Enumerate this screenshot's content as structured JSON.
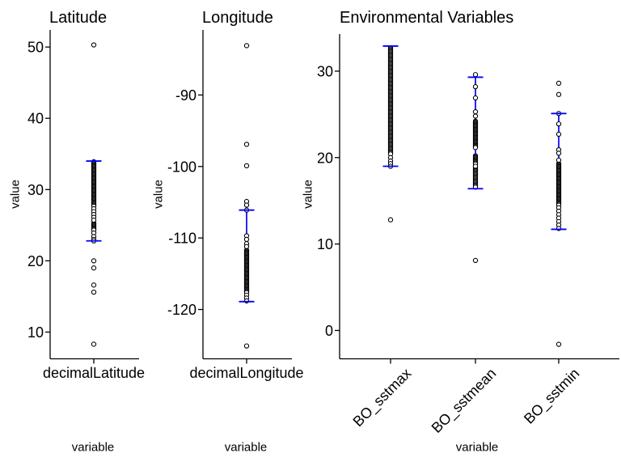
{
  "figure": {
    "background": "#ffffff",
    "point_color": "#000000",
    "errorbar_color": "#0000ff",
    "axis_color": "#000000",
    "text_color": "#000000"
  },
  "chart_data": [
    {
      "type": "scatter",
      "title": "Latitude",
      "ylabel": "value",
      "xlabel": "variable",
      "categories": [
        "decimalLatitude"
      ],
      "y_ticks": [
        10,
        20,
        30,
        40,
        50
      ],
      "ylim": [
        6.25,
        52.4
      ],
      "x_tick_angle": 0,
      "grid": false,
      "legend": false,
      "series": [
        {
          "category": "decimalLatitude",
          "whisker": {
            "min": 22.8,
            "max": 34.0
          },
          "dense_ranges": [
            [
              27.6,
              33.9
            ],
            [
              24.2,
              25.3
            ]
          ],
          "points": [
            50.3,
            27.3,
            26.9,
            26.5,
            26.1,
            25.7,
            23.9,
            23.4,
            23.0,
            22.8,
            20.0,
            19.0,
            16.6,
            15.6,
            8.3
          ]
        }
      ]
    },
    {
      "type": "scatter",
      "title": "Longitude",
      "ylabel": "value",
      "xlabel": "variable",
      "categories": [
        "decimalLongitude"
      ],
      "y_ticks": [
        -120,
        -110,
        -100,
        -90
      ],
      "ylim": [
        -126.9,
        -80.9
      ],
      "x_tick_angle": 0,
      "grid": false,
      "legend": false,
      "series": [
        {
          "category": "decimalLongitude",
          "whisker": {
            "min": -118.9,
            "max": -106.1
          },
          "dense_ranges": [
            [
              -117.7,
              -111.7
            ]
          ],
          "points": [
            -83.1,
            -96.9,
            -99.9,
            -104.9,
            -105.4,
            -106.1,
            -109.7,
            -110.2,
            -110.8,
            -111.2,
            -118.0,
            -118.4,
            -118.8,
            -125.1
          ]
        }
      ]
    },
    {
      "type": "scatter",
      "title": "Environmental Variables",
      "ylabel": "value",
      "xlabel": "variable",
      "categories": [
        "BO_sstmax",
        "BO_sstmean",
        "BO_sstmin"
      ],
      "y_ticks": [
        0,
        10,
        20,
        30
      ],
      "ylim": [
        -3.28,
        34.3
      ],
      "x_tick_angle": 45,
      "grid": false,
      "legend": false,
      "series": [
        {
          "category": "BO_sstmax",
          "whisker": {
            "min": 19.0,
            "max": 32.9
          },
          "dense_ranges": [
            [
              20.4,
              32.7
            ]
          ],
          "points": [
            20.0,
            19.6,
            19.3,
            19.0,
            12.8
          ]
        },
        {
          "category": "BO_sstmean",
          "whisker": {
            "min": 16.4,
            "max": 29.3
          },
          "dense_ranges": [
            [
              21.1,
              24.2
            ],
            [
              19.2,
              20.2
            ],
            [
              16.5,
              18.8
            ]
          ],
          "points": [
            29.6,
            28.2,
            26.9,
            25.3,
            24.8,
            19.0,
            8.1
          ]
        },
        {
          "category": "BO_sstmin",
          "whisker": {
            "min": 11.7,
            "max": 25.1
          },
          "dense_ranges": [
            [
              14.4,
              19.3
            ]
          ],
          "points": [
            28.6,
            27.3,
            25.1,
            23.9,
            22.7,
            20.9,
            20.5,
            19.7,
            14.2,
            13.8,
            13.4,
            13.0,
            12.6,
            12.2,
            11.8,
            -1.6
          ]
        }
      ]
    }
  ]
}
